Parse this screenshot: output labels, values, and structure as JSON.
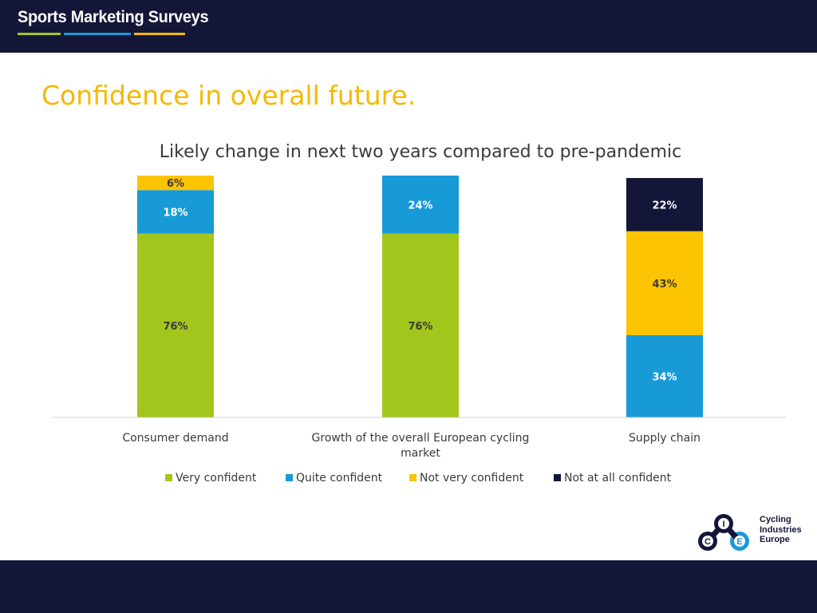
{
  "header": {
    "brand": "Sports Marketing Surveys",
    "brand_colors": [
      "#a3c61c",
      "#189ad7",
      "#f5b800"
    ]
  },
  "page": {
    "title": "Confidence in overall future."
  },
  "colors": {
    "dark_navy": "#141638",
    "title_yellow": "#f5b800"
  },
  "chart_data": {
    "type": "bar",
    "stacked": true,
    "title": "Likely change in next two years compared to pre-pandemic",
    "categories": [
      [
        "Consumer demand"
      ],
      [
        "Growth of the overall European cycling",
        "market"
      ],
      [
        "Supply chain"
      ]
    ],
    "series": [
      {
        "name": "Very confident",
        "color": "#a3c61c",
        "values": [
          76,
          76,
          0
        ],
        "labels": [
          "76%",
          "76%",
          ""
        ],
        "label_color": "#3a3a3a"
      },
      {
        "name": "Quite confident",
        "color": "#189ad7",
        "values": [
          18,
          24,
          34
        ],
        "labels": [
          "18%",
          "24%",
          "34%"
        ],
        "label_color": "#ffffff"
      },
      {
        "name": "Not very confident",
        "color": "#fcc400",
        "values": [
          6,
          0,
          43
        ],
        "labels": [
          "6%",
          "",
          "43%"
        ],
        "label_color": "#3a3a3a"
      },
      {
        "name": "Not at all confident",
        "color": "#141638",
        "values": [
          0,
          0,
          22
        ],
        "labels": [
          "",
          "",
          "22%"
        ],
        "label_color": "#ffffff"
      }
    ],
    "ylim": [
      0,
      100
    ],
    "legend_position": "bottom",
    "grid": false
  },
  "logo": {
    "letters": [
      "I",
      "C",
      "E"
    ],
    "text_lines": [
      "Cycling",
      "Industries",
      "Europe"
    ]
  }
}
